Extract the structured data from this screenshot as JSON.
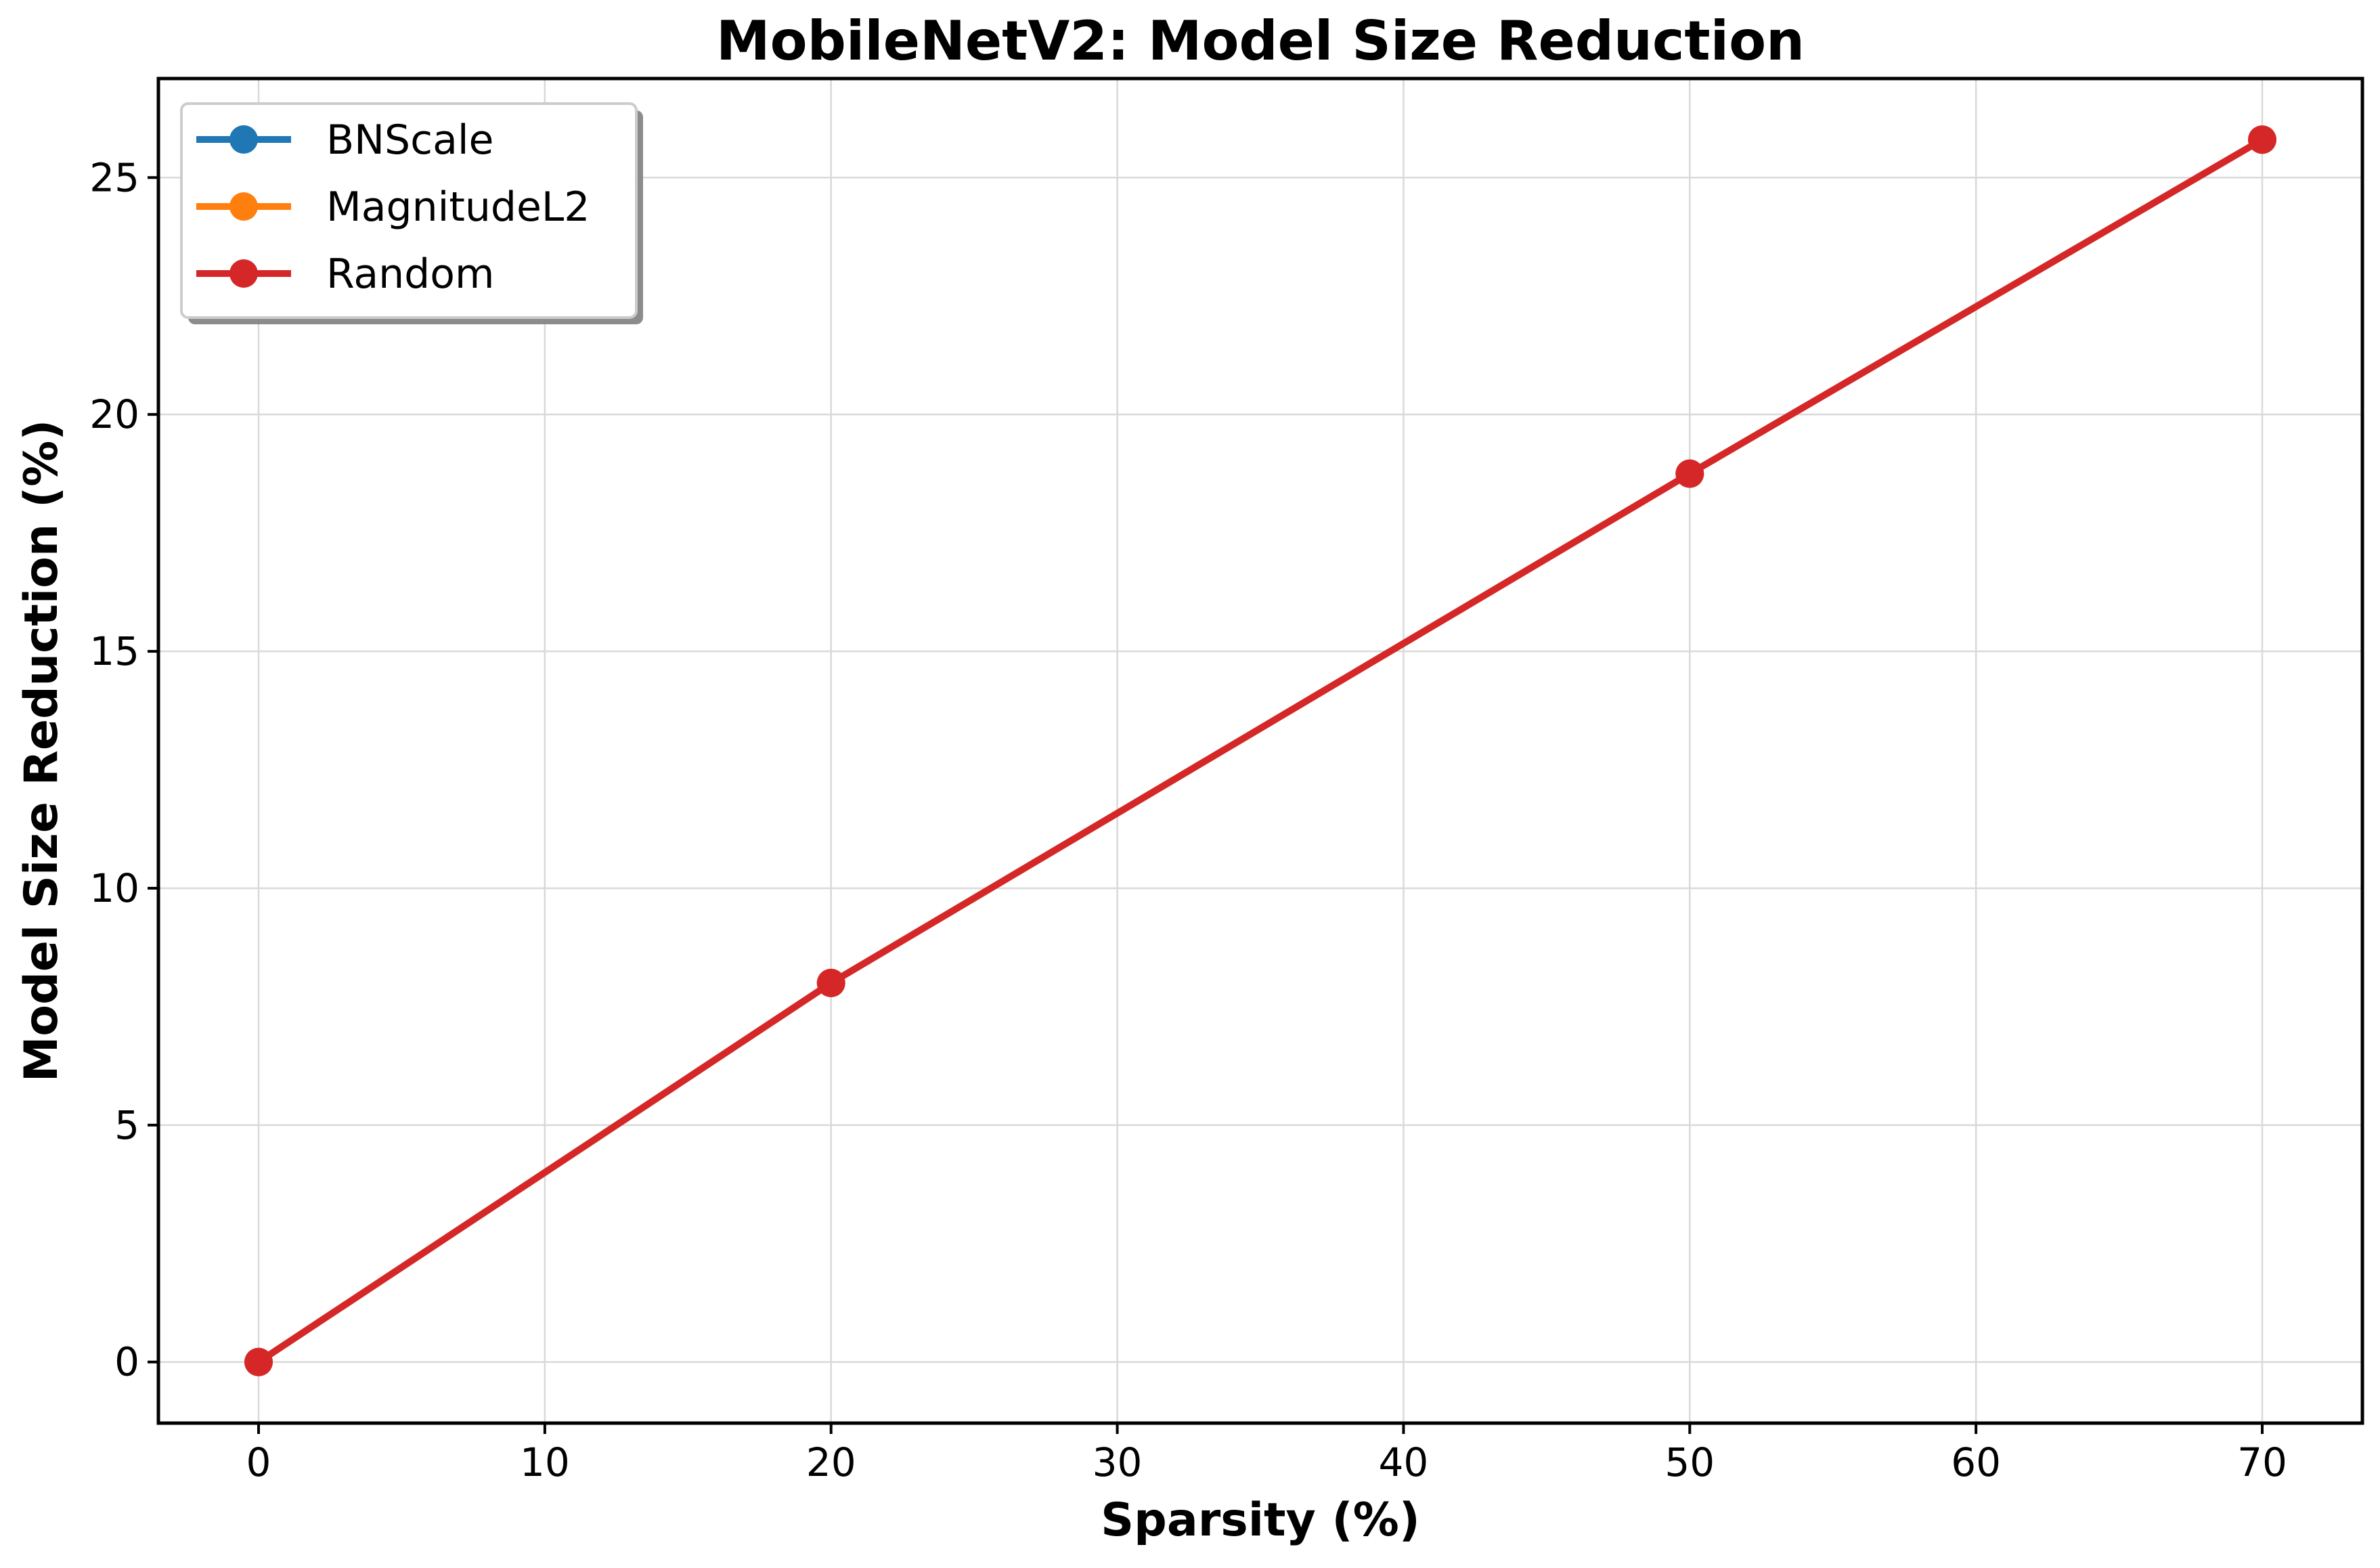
{
  "chart_data": {
    "type": "line",
    "title": "MobileNetV2: Model Size Reduction",
    "xlabel": "Sparsity (%)",
    "ylabel": "Model Size Reduction (%)",
    "x": [
      0,
      20,
      50,
      70
    ],
    "xlim": [
      -3.5,
      73.5
    ],
    "ylim": [
      -1.29,
      27.09
    ],
    "xticks": [
      0,
      10,
      20,
      30,
      40,
      50,
      60,
      70
    ],
    "yticks": [
      0,
      5,
      10,
      15,
      20,
      25
    ],
    "xtick_labels": [
      "0",
      "10",
      "20",
      "30",
      "40",
      "50",
      "60",
      "70"
    ],
    "ytick_labels": [
      "0",
      "5",
      "10",
      "15",
      "20",
      "25"
    ],
    "grid": true,
    "legend_position": "top-left",
    "series": [
      {
        "name": "BNScale",
        "color": "#1f77b4",
        "values": [
          0,
          8.0,
          18.75,
          25.8
        ]
      },
      {
        "name": "MagnitudeL2",
        "color": "#ff7f0e",
        "values": [
          0,
          8.0,
          18.75,
          25.8
        ]
      },
      {
        "name": "Random",
        "color": "#d62728",
        "values": [
          0,
          8.0,
          18.75,
          25.8
        ]
      }
    ]
  }
}
